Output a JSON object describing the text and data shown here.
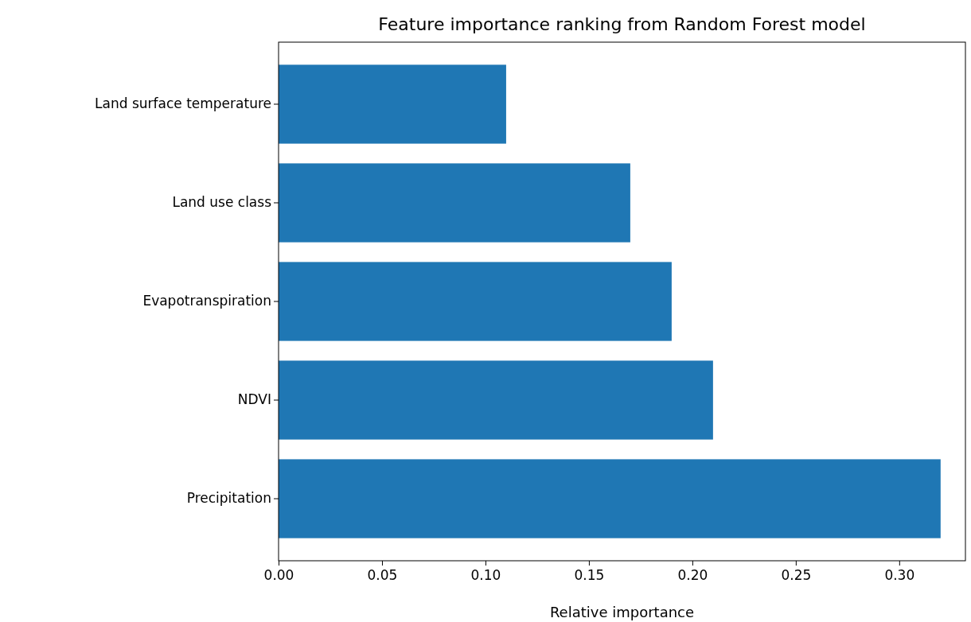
{
  "chart_data": {
    "type": "bar",
    "orientation": "horizontal",
    "title": "Feature importance ranking from Random Forest model",
    "xlabel": "Relative importance",
    "categories": [
      "Land surface temperature",
      "Land use class",
      "Evapotranspiration",
      "NDVI",
      "Precipitation"
    ],
    "values": [
      0.11,
      0.17,
      0.19,
      0.21,
      0.32
    ],
    "color": "#1f77b4",
    "xlim": [
      0,
      0.332
    ],
    "xticks": [
      {
        "value": 0,
        "label": "0.00"
      },
      {
        "value": 0.05,
        "label": "0.05"
      },
      {
        "value": 0.1,
        "label": "0.10"
      },
      {
        "value": 0.15,
        "label": "0.15"
      },
      {
        "value": 0.2,
        "label": "0.20"
      },
      {
        "value": 0.25,
        "label": "0.25"
      },
      {
        "value": 0.3,
        "label": "0.30"
      }
    ],
    "grid": false
  }
}
